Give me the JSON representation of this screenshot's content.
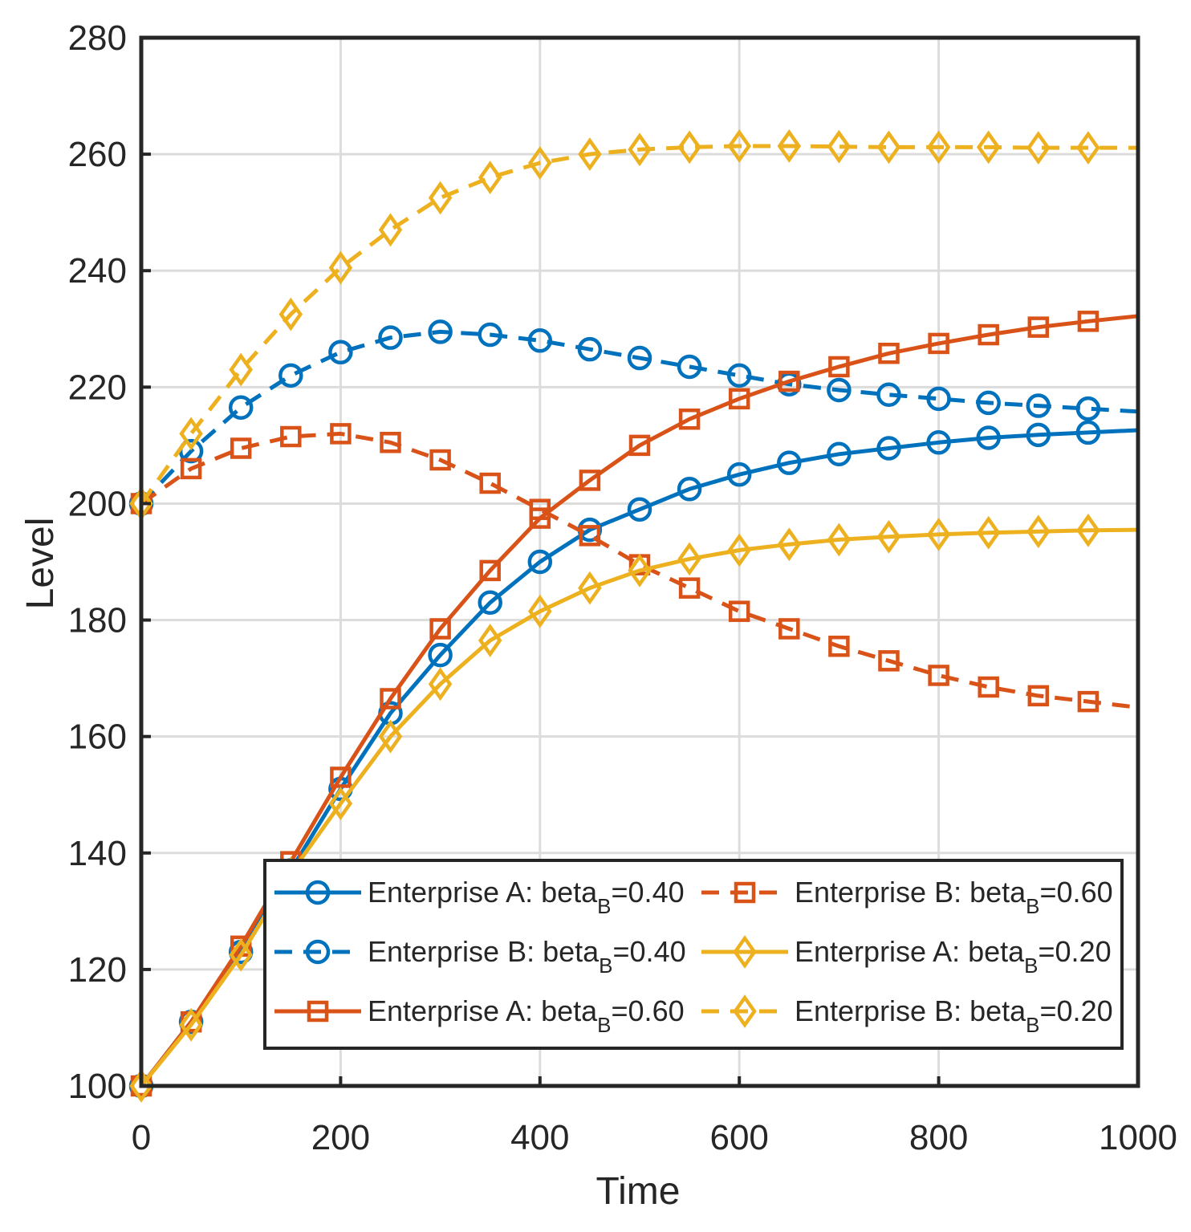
{
  "chart_data": {
    "type": "line",
    "title": "",
    "xlabel": "Time",
    "ylabel": "Level",
    "xlim": [
      0,
      1000
    ],
    "ylim": [
      100,
      280
    ],
    "xticks": [
      0,
      200,
      400,
      600,
      800,
      1000
    ],
    "yticks": [
      100,
      120,
      140,
      160,
      180,
      200,
      220,
      240,
      260,
      280
    ],
    "grid": true,
    "legend_position": "bottom-right",
    "x": [
      0,
      50,
      100,
      150,
      200,
      250,
      300,
      350,
      400,
      450,
      500,
      550,
      600,
      650,
      700,
      750,
      800,
      850,
      900,
      950,
      1000
    ],
    "series": [
      {
        "id": "a040",
        "name": "Enterprise A: beta",
        "subscript": "B",
        "suffix": "=0.40",
        "color": "#0072BD",
        "line_style": "solid",
        "marker": "circle",
        "values": [
          100,
          111,
          123,
          137,
          151,
          164,
          174,
          183,
          190,
          195.5,
          199,
          202.5,
          205,
          207,
          208.5,
          209.5,
          210.5,
          211.3,
          211.8,
          212.2,
          212.6
        ]
      },
      {
        "id": "b040",
        "name": "Enterprise B: beta",
        "subscript": "B",
        "suffix": "=0.40",
        "color": "#0072BD",
        "line_style": "dashed",
        "marker": "circle",
        "values": [
          200,
          209,
          216.5,
          222,
          226,
          228.5,
          229.5,
          229,
          228,
          226.5,
          225,
          223.5,
          222,
          220.5,
          219.5,
          218.7,
          218,
          217.3,
          216.8,
          216.3,
          215.8
        ]
      },
      {
        "id": "a060",
        "name": "Enterprise A: beta",
        "subscript": "B",
        "suffix": "=0.60",
        "color": "#D95319",
        "line_style": "solid",
        "marker": "square",
        "values": [
          100,
          111,
          124,
          138.5,
          153,
          166.5,
          178.5,
          188.5,
          197.5,
          204,
          210,
          214.5,
          218,
          221,
          223.5,
          225.8,
          227.5,
          229,
          230.3,
          231.3,
          232.2
        ]
      },
      {
        "id": "b060",
        "name": "Enterprise B: beta",
        "subscript": "B",
        "suffix": "=0.60",
        "color": "#D95319",
        "line_style": "dashed",
        "marker": "square",
        "values": [
          200,
          206,
          209.5,
          211.5,
          212,
          210.5,
          207.5,
          203.5,
          199,
          194.5,
          189.5,
          185.5,
          181.5,
          178.5,
          175.5,
          173,
          170.5,
          168.5,
          167,
          166,
          165
        ]
      },
      {
        "id": "a020",
        "name": "Enterprise A: beta",
        "subscript": "B",
        "suffix": "=0.20",
        "color": "#EDB120",
        "line_style": "solid",
        "marker": "diamond",
        "values": [
          100,
          110.5,
          122.5,
          136.5,
          148.5,
          160,
          169,
          176.5,
          181.5,
          185.5,
          188.5,
          190.5,
          192,
          193,
          193.8,
          194.3,
          194.7,
          195,
          195.2,
          195.4,
          195.5
        ]
      },
      {
        "id": "b020",
        "name": "Enterprise B: beta",
        "subscript": "B",
        "suffix": "=0.20",
        "color": "#EDB120",
        "line_style": "dashed",
        "marker": "diamond",
        "values": [
          200,
          212,
          223,
          232.5,
          240.5,
          247,
          252.5,
          256,
          258.5,
          260,
          260.8,
          261.2,
          261.4,
          261.4,
          261.3,
          261.2,
          261.2,
          261.2,
          261.1,
          261.1,
          261.1
        ]
      }
    ],
    "legend_order": [
      "a040",
      "b060",
      "b040",
      "a020",
      "a060",
      "b020"
    ]
  }
}
